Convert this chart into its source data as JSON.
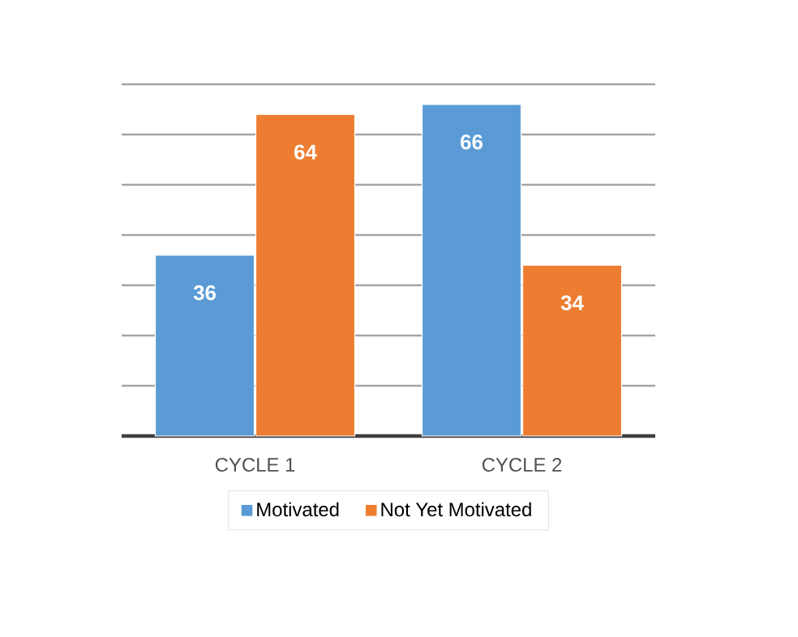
{
  "chart_data": {
    "type": "bar",
    "categories": [
      "CYCLE 1",
      "CYCLE 2"
    ],
    "series": [
      {
        "name": "Motivated",
        "color": "#5b9bd5",
        "values": [
          36,
          66
        ]
      },
      {
        "name": "Not Yet Motivated",
        "color": "#ed7d31",
        "values": [
          64,
          34
        ]
      }
    ],
    "ylim": [
      0,
      70
    ],
    "grid": "y",
    "legend": "bottom",
    "data_labels": true,
    "tick_labels": "x"
  }
}
